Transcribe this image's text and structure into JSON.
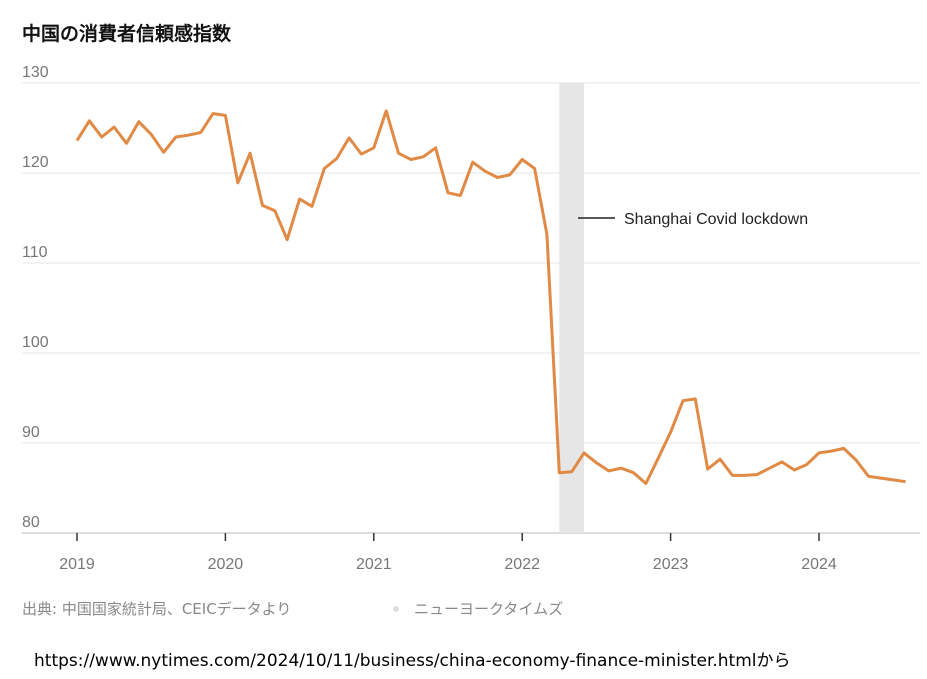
{
  "chart_data": {
    "type": "line",
    "title": "中国の消費者信頼感指数",
    "xlabel": "",
    "ylabel": "",
    "ylim": [
      80,
      130
    ],
    "yticks": [
      "80",
      "90",
      "100",
      "110",
      "120",
      "130"
    ],
    "xticks": [
      "2019",
      "2020",
      "2021",
      "2022",
      "2023",
      "2024"
    ],
    "grid": true,
    "start": "2019-01",
    "frequency": "monthly",
    "series": [
      {
        "name": "Consumer confidence index",
        "color": "#e08a45",
        "values": [
          123.6,
          125.8,
          124.0,
          125.1,
          123.3,
          125.7,
          124.3,
          122.3,
          124.0,
          124.2,
          124.5,
          126.6,
          126.4,
          118.9,
          122.2,
          116.4,
          115.8,
          112.6,
          117.1,
          116.3,
          120.5,
          121.6,
          123.9,
          122.1,
          122.8,
          126.9,
          122.2,
          121.5,
          121.8,
          122.8,
          117.8,
          117.5,
          121.2,
          120.2,
          119.5,
          119.8,
          121.5,
          120.5,
          113.2,
          86.7,
          86.8,
          88.9,
          87.8,
          86.9,
          87.2,
          86.7,
          85.5,
          88.3,
          91.2,
          94.7,
          94.9,
          87.1,
          88.2,
          86.4,
          86.4,
          86.5,
          87.2,
          87.9,
          87.0,
          87.6,
          88.9,
          89.1,
          89.4,
          88.1,
          86.3,
          86.1,
          85.9,
          85.7
        ]
      }
    ],
    "shaded_period": {
      "from": "2022-04",
      "to": "2022-06",
      "color": "#e6e6e6"
    },
    "annotation": "Shanghai Covid lockdown"
  },
  "source": "出典: 中国国家統計局、CEICデータより",
  "credit": "ニューヨークタイムズ",
  "url_caption": "https://www.nytimes.com/2024/10/11/business/china-economy-finance-minister.htmlから"
}
